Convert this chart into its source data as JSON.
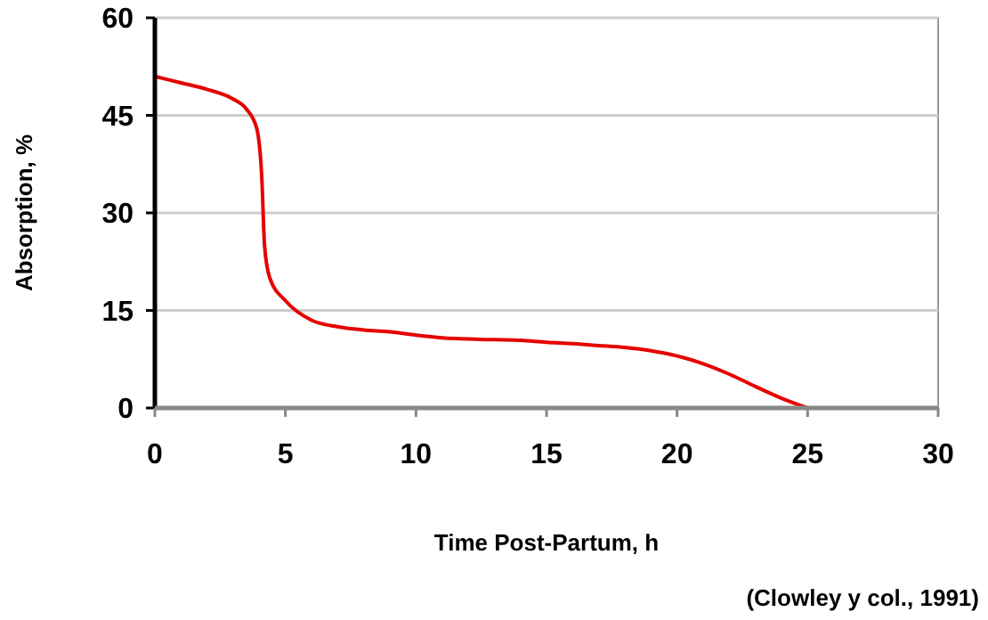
{
  "chart_data": {
    "type": "line",
    "xlabel": "Time Post-Partum, h",
    "ylabel": "Absorption, %",
    "annotations": [
      "(Clowley y col., 1991)"
    ],
    "x": [
      0,
      1,
      2,
      3,
      3.5,
      3.9,
      4.1,
      4.2,
      4.4,
      5,
      6,
      7,
      8,
      9,
      10,
      11,
      12,
      13,
      14,
      15,
      16,
      17,
      18,
      19,
      20,
      21,
      22,
      23,
      24,
      25
    ],
    "series": [
      {
        "color": "#e60000",
        "values": [
          51,
          50,
          49,
          47.5,
          46,
          43,
          35,
          25,
          20,
          16.5,
          13.5,
          12.5,
          12,
          11.7,
          11.2,
          10.8,
          10.6,
          10.5,
          10.4,
          10.1,
          9.9,
          9.6,
          9.3,
          8.8,
          8,
          6.8,
          5.2,
          3.3,
          1.5,
          0
        ]
      }
    ],
    "xlim": [
      0,
      30
    ],
    "xticks": [
      0,
      5,
      10,
      15,
      20,
      25,
      30
    ],
    "ylim": [
      0,
      60
    ],
    "yticks": [
      0,
      15,
      30,
      45,
      60
    ],
    "grid": "y",
    "marker": "none",
    "line_style": "solid"
  }
}
